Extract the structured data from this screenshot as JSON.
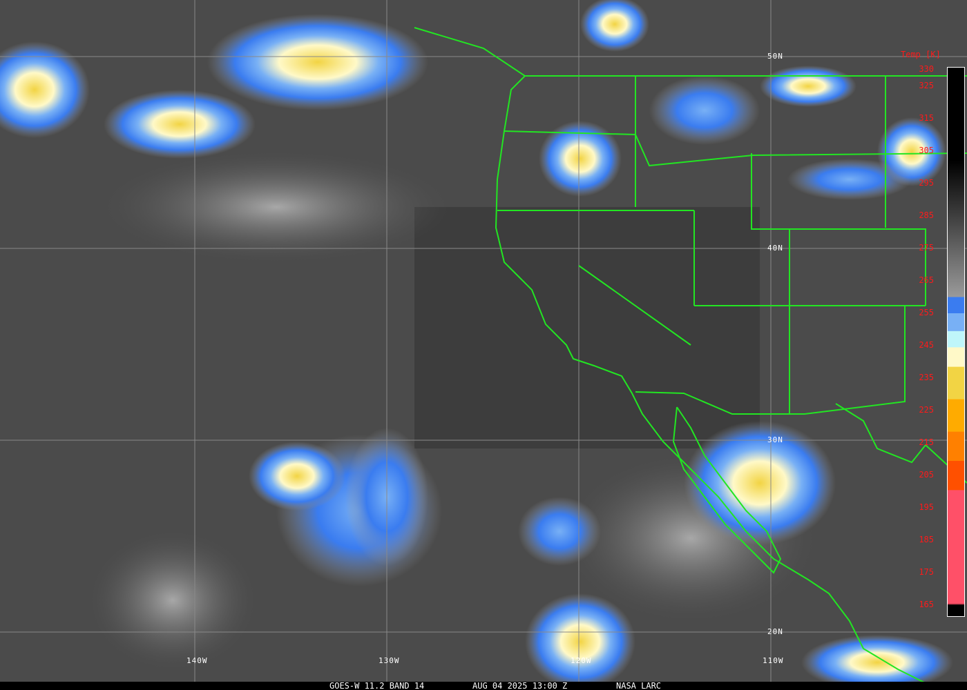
{
  "image": {
    "satellite_caption": "GOES-W 11.2 BAND 14",
    "timestamp": "AUG 04 2025 13:00 Z",
    "credit": "NASA LARC"
  },
  "grid": {
    "latitudes": [
      "50N",
      "40N",
      "30N",
      "20N"
    ],
    "longitudes": [
      "140W",
      "130W",
      "120W",
      "110W"
    ]
  },
  "legend": {
    "title": "Temp [K]",
    "ticks": [
      "330",
      "325",
      "315",
      "305",
      "295",
      "285",
      "275",
      "265",
      "255",
      "245",
      "235",
      "225",
      "215",
      "205",
      "195",
      "185",
      "175",
      "165"
    ],
    "colors": {
      "black": "#000000",
      "gray_light": "#9a9a9a",
      "blue": "#3a7cf0",
      "light_blue": "#78b0f5",
      "pale_cyan": "#bff6fa",
      "cream": "#fff9c8",
      "yellow": "#f2d444",
      "orange": "#ffab00",
      "dark_orange": "#ff8000",
      "red_orange": "#ff5000",
      "pink": "#ff5068"
    }
  },
  "colors": {
    "borders": "#22e622",
    "grid": "#8a8a8a",
    "tick_text": "#ff1a1a"
  }
}
